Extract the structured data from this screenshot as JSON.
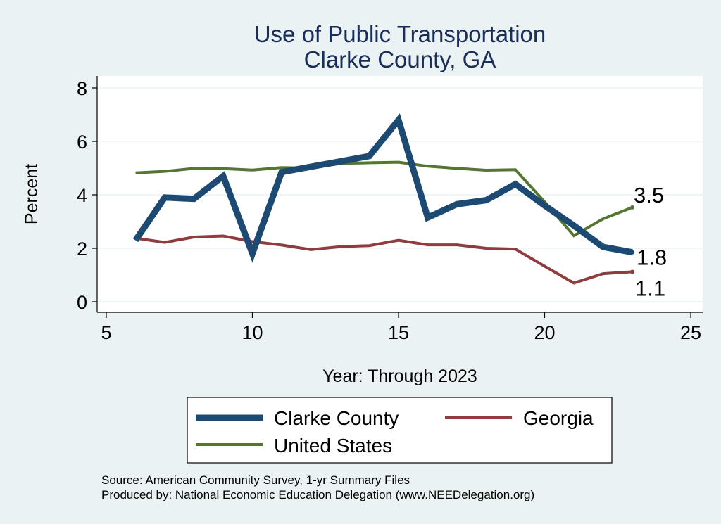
{
  "chart_data": {
    "type": "line",
    "title": "Use of Public Transportation",
    "subtitle": "Clarke County, GA",
    "xlabel": "Year: Through 2023",
    "ylabel": "Percent",
    "xlim": [
      5,
      25
    ],
    "ylim": [
      0,
      8
    ],
    "xticks": [
      "5",
      "10",
      "15",
      "20",
      "25"
    ],
    "yticks": [
      "0",
      "2",
      "4",
      "6",
      "8"
    ],
    "grid": true,
    "legend_position": "bottom",
    "series": [
      {
        "name": "Clarke County",
        "color": "#1c4a72",
        "line_weight": "thick",
        "end_label": "1.8",
        "x": [
          6,
          7,
          8,
          9,
          10,
          11,
          12,
          13,
          14,
          15,
          16,
          17,
          18,
          19,
          20,
          21,
          22,
          23
        ],
        "y": [
          2.3,
          3.9,
          3.85,
          4.7,
          1.8,
          4.85,
          5.05,
          5.25,
          5.45,
          6.8,
          3.15,
          3.65,
          3.8,
          4.4,
          3.6,
          2.85,
          2.05,
          1.85
        ]
      },
      {
        "name": "Georgia",
        "color": "#903c3f",
        "line_weight": "normal",
        "end_label": "1.1",
        "x": [
          6,
          7,
          8,
          9,
          10,
          11,
          12,
          13,
          14,
          15,
          16,
          17,
          18,
          19,
          20,
          21,
          22,
          23
        ],
        "y": [
          2.38,
          2.22,
          2.42,
          2.46,
          2.25,
          2.12,
          1.95,
          2.06,
          2.1,
          2.3,
          2.13,
          2.13,
          2.0,
          1.97,
          1.33,
          0.7,
          1.05,
          1.12
        ]
      },
      {
        "name": "United States",
        "color": "#557632",
        "line_weight": "normal",
        "end_label": "3.5",
        "x": [
          6,
          7,
          8,
          9,
          10,
          11,
          12,
          13,
          14,
          15,
          16,
          17,
          18,
          19,
          20,
          21,
          22,
          23
        ],
        "y": [
          4.82,
          4.88,
          4.99,
          4.98,
          4.93,
          5.02,
          5.0,
          5.17,
          5.2,
          5.22,
          5.07,
          4.99,
          4.92,
          4.94,
          3.74,
          2.47,
          3.1,
          3.53
        ]
      }
    ],
    "notes": [
      "Source: American Community Survey, 1-yr Summary Files",
      "Produced by: National Economic Education Delegation (www.NEEDelegation.org)"
    ]
  }
}
